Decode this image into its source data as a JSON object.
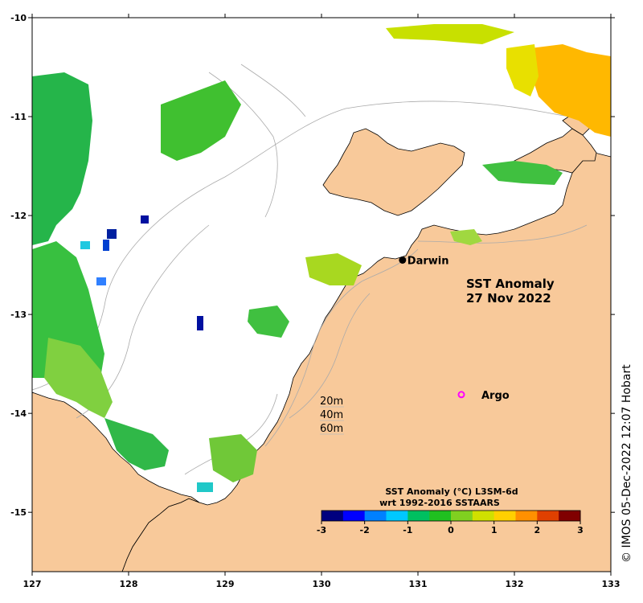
{
  "map": {
    "title_line1": "SST Anomaly",
    "title_line2": "27 Nov 2022",
    "x_ticks": [
      "127",
      "128",
      "129",
      "130",
      "131",
      "132",
      "133"
    ],
    "y_ticks": [
      "-10",
      "-11",
      "-12",
      "-13",
      "-14",
      "-15"
    ],
    "lon_range": [
      127,
      133
    ],
    "lat_range": [
      -15.6,
      -10
    ],
    "places": [
      {
        "name": "Darwin",
        "lon": 130.84,
        "lat": -12.45,
        "marker": "filled-dot"
      },
      {
        "name": "Argo",
        "lon": 131.45,
        "lat": -13.81,
        "marker": "open-circle-magenta"
      }
    ],
    "depth_legend": [
      "20m",
      "40m",
      "60m"
    ],
    "colorbar": {
      "title_line1": "SST Anomaly (°C) L3SM-6d",
      "title_line2": "wrt 1992-2016 SSTAARS",
      "ticks": [
        "-3",
        "-2",
        "-1",
        "0",
        "1",
        "2",
        "3"
      ],
      "range": [
        -3,
        3
      ],
      "colors": [
        "#00007f",
        "#0000ff",
        "#0080ff",
        "#00c8ff",
        "#00c060",
        "#20c020",
        "#80d020",
        "#d0e000",
        "#ffd000",
        "#ff9000",
        "#e04000",
        "#800000"
      ]
    },
    "land_color": "#f8c99a",
    "credit": "© IMOS 05-Dec-2022 12:07 Hobart"
  }
}
